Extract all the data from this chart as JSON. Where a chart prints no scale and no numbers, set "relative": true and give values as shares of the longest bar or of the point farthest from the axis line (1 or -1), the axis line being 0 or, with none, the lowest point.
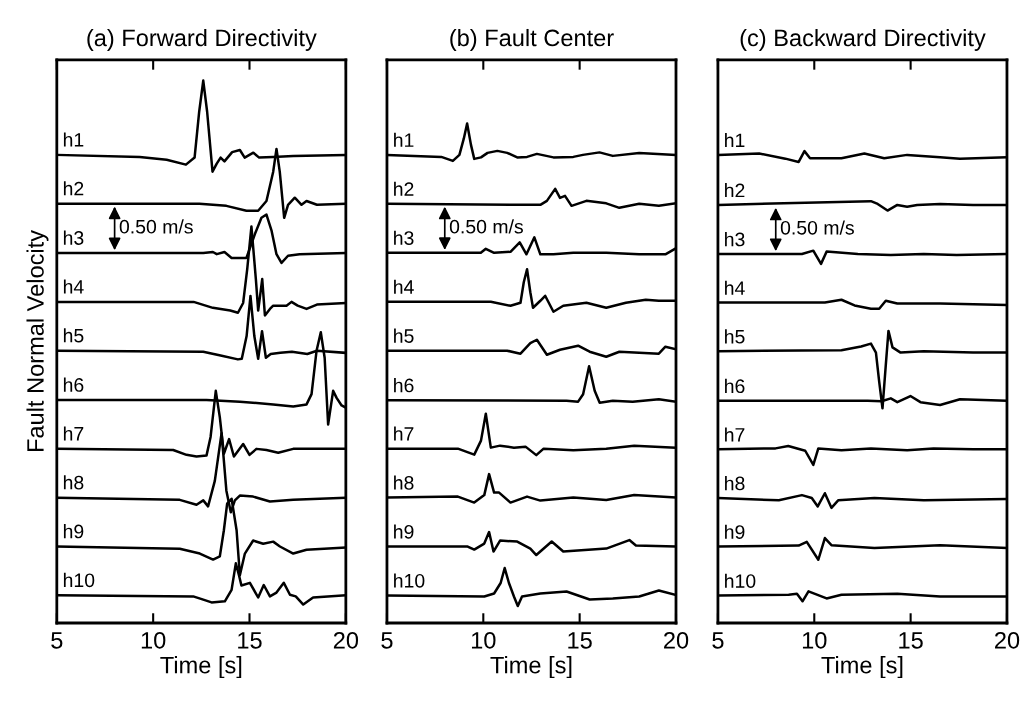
{
  "chart_data": [
    {
      "type": "line",
      "title": "(a) Forward Directivity",
      "xlabel": "Time [s]",
      "ylabel": "Fault Normal Velocity",
      "xlim": [
        5,
        20
      ],
      "xticks": [
        5,
        10,
        15,
        20
      ],
      "relative": true,
      "tick_labels": "x",
      "grid": false,
      "marker": "none",
      "line_style": "solid",
      "annotations": [
        "0.50 m/s"
      ],
      "series": [
        {
          "name": "h1",
          "color": "#000000",
          "x": [
            5,
            9.3,
            10.7,
            11.7,
            12.15,
            12.39,
            12.6,
            12.8,
            13.08,
            13.3,
            13.5,
            13.7,
            14.1,
            14.5,
            14.75,
            15.2,
            15.5,
            16.23,
            17.27,
            20
          ],
          "values": [
            0.863,
            0.859,
            0.854,
            0.845,
            0.858,
            0.943,
            1.0,
            0.943,
            0.832,
            0.847,
            0.858,
            0.851,
            0.868,
            0.872,
            0.858,
            0.867,
            0.858,
            0.859,
            0.861,
            0.863
          ]
        },
        {
          "name": "h2",
          "color": "#000000",
          "x": [
            5,
            12.4,
            13.8,
            14.84,
            15.45,
            15.88,
            16.23,
            16.4,
            16.57,
            16.8,
            17.0,
            17.35,
            17.7,
            17.96,
            18.5,
            20
          ],
          "values": [
            0.773,
            0.773,
            0.769,
            0.76,
            0.76,
            0.778,
            0.832,
            0.874,
            0.832,
            0.747,
            0.771,
            0.784,
            0.771,
            0.778,
            0.771,
            0.773
          ]
        },
        {
          "name": "h3",
          "color": "#000000",
          "x": [
            5,
            12.6,
            13.1,
            13.3,
            13.7,
            14.07,
            14.5,
            14.84,
            15.28,
            15.62,
            15.88,
            16.14,
            16.4,
            16.66,
            17.0,
            17.6,
            20
          ],
          "values": [
            0.682,
            0.682,
            0.684,
            0.68,
            0.684,
            0.673,
            0.673,
            0.673,
            0.717,
            0.747,
            0.753,
            0.724,
            0.68,
            0.664,
            0.677,
            0.68,
            0.682
          ]
        },
        {
          "name": "h4",
          "color": "#000000",
          "x": [
            5,
            12.1,
            13.1,
            14.0,
            14.4,
            14.67,
            14.88,
            15.1,
            15.33,
            15.45,
            15.66,
            15.8,
            16.06,
            16.23,
            16.92,
            17.18,
            17.5,
            17.96,
            18.5,
            20
          ],
          "values": [
            0.592,
            0.592,
            0.581,
            0.576,
            0.572,
            0.59,
            0.652,
            0.731,
            0.634,
            0.576,
            0.634,
            0.567,
            0.579,
            0.585,
            0.585,
            0.592,
            0.585,
            0.579,
            0.587,
            0.59
          ]
        },
        {
          "name": "h5",
          "color": "#000000",
          "x": [
            5,
            12.6,
            13.5,
            14.4,
            14.6,
            14.85,
            15.05,
            15.25,
            15.45,
            15.65,
            15.85,
            16.1,
            16.6,
            17.2,
            18.0,
            18.5,
            20
          ],
          "values": [
            0.502,
            0.5,
            0.493,
            0.486,
            0.487,
            0.529,
            0.603,
            0.529,
            0.487,
            0.538,
            0.489,
            0.496,
            0.498,
            0.5,
            0.496,
            0.502,
            0.498
          ]
        },
        {
          "name": "h6",
          "color": "#000000",
          "x": [
            5,
            12.77,
            14.5,
            16.23,
            17.27,
            17.96,
            18.22,
            18.48,
            18.7,
            18.9,
            19.08,
            19.34,
            19.52,
            19.78,
            20
          ],
          "values": [
            0.411,
            0.411,
            0.408,
            0.403,
            0.399,
            0.403,
            0.422,
            0.502,
            0.536,
            0.489,
            0.366,
            0.428,
            0.415,
            0.401,
            0.397
          ]
        },
        {
          "name": "h7",
          "color": "#000000",
          "x": [
            5,
            11.04,
            11.73,
            12.25,
            12.77,
            12.98,
            13.25,
            13.46,
            13.67,
            13.94,
            14.19,
            14.67,
            15.0,
            15.36,
            15.88,
            16.49,
            17.27,
            20
          ],
          "values": [
            0.321,
            0.319,
            0.31,
            0.307,
            0.309,
            0.343,
            0.428,
            0.379,
            0.312,
            0.339,
            0.307,
            0.33,
            0.31,
            0.321,
            0.319,
            0.314,
            0.321,
            0.321
          ]
        },
        {
          "name": "h8",
          "color": "#000000",
          "x": [
            5,
            11.38,
            12.25,
            12.6,
            12.85,
            13.2,
            13.55,
            13.8,
            14.03,
            14.24,
            14.5,
            15.19,
            16.06,
            17.27,
            20
          ],
          "values": [
            0.231,
            0.227,
            0.218,
            0.226,
            0.215,
            0.262,
            0.35,
            0.244,
            0.204,
            0.226,
            0.235,
            0.233,
            0.224,
            0.227,
            0.231
          ]
        },
        {
          "name": "h9",
          "color": "#000000",
          "x": [
            5,
            11.38,
            12.42,
            13.11,
            13.46,
            13.67,
            13.84,
            14.07,
            14.33,
            14.5,
            14.76,
            15.19,
            15.71,
            16.23,
            16.58,
            17.27,
            17.96,
            20
          ],
          "values": [
            0.141,
            0.137,
            0.128,
            0.117,
            0.123,
            0.171,
            0.22,
            0.229,
            0.171,
            0.088,
            0.128,
            0.152,
            0.146,
            0.15,
            0.141,
            0.128,
            0.135,
            0.139
          ]
        },
        {
          "name": "h10",
          "color": "#000000",
          "x": [
            5,
            12.08,
            12.6,
            13.03,
            13.72,
            14.07,
            14.29,
            14.46,
            14.58,
            15.02,
            15.45,
            15.74,
            16.06,
            16.4,
            16.78,
            17.1,
            17.4,
            17.79,
            18.3,
            20
          ],
          "values": [
            0.051,
            0.049,
            0.043,
            0.038,
            0.04,
            0.061,
            0.11,
            0.087,
            0.069,
            0.074,
            0.047,
            0.07,
            0.049,
            0.056,
            0.074,
            0.052,
            0.049,
            0.034,
            0.047,
            0.051
          ]
        }
      ]
    },
    {
      "type": "line",
      "title": "(b) Fault Center",
      "xlabel": "Time [s]",
      "xlim": [
        5,
        20
      ],
      "xticks": [
        5,
        10,
        15,
        20
      ],
      "relative": true,
      "tick_labels": "x",
      "grid": false,
      "marker": "none",
      "line_style": "solid",
      "annotations": [
        "0.50 m/s"
      ],
      "series": [
        {
          "name": "h1",
          "color": "#000000",
          "x": [
            5,
            7.82,
            8.42,
            8.76,
            8.99,
            9.16,
            9.36,
            9.53,
            9.88,
            10.22,
            10.73,
            11.24,
            11.76,
            12.27,
            12.78,
            13.64,
            14.67,
            15.17,
            16.03,
            16.72,
            18.09,
            20
          ],
          "values": [
            0.937,
            0.933,
            0.925,
            0.937,
            0.97,
            1.0,
            0.957,
            0.929,
            0.932,
            0.941,
            0.945,
            0.941,
            0.932,
            0.933,
            0.939,
            0.932,
            0.933,
            0.937,
            0.942,
            0.935,
            0.941,
            0.937
          ]
        },
        {
          "name": "h2",
          "color": "#000000",
          "x": [
            5,
            12.96,
            13.3,
            13.73,
            13.98,
            14.24,
            14.58,
            15.35,
            16.38,
            17.06,
            18.09,
            19.11,
            20
          ],
          "values": [
            0.839,
            0.837,
            0.845,
            0.869,
            0.851,
            0.855,
            0.835,
            0.845,
            0.84,
            0.831,
            0.839,
            0.835,
            0.84
          ]
        },
        {
          "name": "h3",
          "color": "#000000",
          "x": [
            5,
            9.87,
            10.13,
            10.56,
            11.41,
            11.89,
            12.24,
            12.65,
            12.96,
            13.64,
            14.67,
            16.38,
            18.09,
            19.45,
            20
          ],
          "values": [
            0.741,
            0.741,
            0.749,
            0.741,
            0.743,
            0.762,
            0.738,
            0.772,
            0.738,
            0.738,
            0.741,
            0.741,
            0.738,
            0.738,
            0.75
          ]
        },
        {
          "name": "h4",
          "color": "#000000",
          "x": [
            5,
            10.39,
            11.41,
            11.93,
            12.1,
            12.27,
            12.44,
            12.58,
            12.96,
            13.21,
            13.64,
            14.15,
            15.35,
            16.38,
            17.4,
            18.43,
            19.11,
            20
          ],
          "values": [
            0.643,
            0.643,
            0.635,
            0.641,
            0.682,
            0.708,
            0.662,
            0.631,
            0.645,
            0.655,
            0.623,
            0.635,
            0.641,
            0.631,
            0.641,
            0.647,
            0.645,
            0.645
          ]
        },
        {
          "name": "h5",
          "color": "#000000",
          "x": [
            5,
            11.24,
            11.93,
            12.44,
            12.78,
            13.3,
            13.98,
            14.92,
            15.52,
            16.38,
            17.06,
            18.09,
            19.11,
            19.45,
            20
          ],
          "values": [
            0.545,
            0.545,
            0.539,
            0.56,
            0.567,
            0.537,
            0.547,
            0.555,
            0.543,
            0.533,
            0.543,
            0.541,
            0.539,
            0.553,
            0.548
          ]
        },
        {
          "name": "h6",
          "color": "#000000",
          "x": [
            5,
            14.32,
            14.92,
            15.18,
            15.49,
            15.78,
            16.04,
            16.72,
            17.75,
            19.11,
            20
          ],
          "values": [
            0.446,
            0.445,
            0.443,
            0.458,
            0.514,
            0.465,
            0.441,
            0.445,
            0.443,
            0.448,
            0.443
          ]
        },
        {
          "name": "h7",
          "color": "#000000",
          "x": [
            5,
            8.68,
            9.53,
            9.88,
            10.13,
            10.39,
            10.87,
            11.59,
            12.19,
            12.75,
            13.13,
            14.67,
            16.38,
            17.83,
            20
          ],
          "values": [
            0.349,
            0.349,
            0.337,
            0.365,
            0.419,
            0.351,
            0.355,
            0.351,
            0.353,
            0.336,
            0.349,
            0.346,
            0.349,
            0.355,
            0.351
          ]
        },
        {
          "name": "h8",
          "color": "#000000",
          "x": [
            5,
            8.68,
            9.53,
            10.05,
            10.3,
            10.56,
            10.82,
            11.41,
            12.27,
            12.96,
            14.67,
            16.38,
            17.83,
            20
          ],
          "values": [
            0.251,
            0.253,
            0.241,
            0.256,
            0.298,
            0.261,
            0.261,
            0.241,
            0.253,
            0.245,
            0.251,
            0.246,
            0.256,
            0.251
          ]
        },
        {
          "name": "h9",
          "color": "#000000",
          "x": [
            5,
            9.19,
            9.53,
            10.05,
            10.3,
            10.53,
            10.87,
            11.76,
            12.44,
            12.75,
            13.55,
            14.15,
            16.38,
            17.58,
            17.92,
            20
          ],
          "values": [
            0.153,
            0.153,
            0.147,
            0.159,
            0.182,
            0.143,
            0.165,
            0.163,
            0.149,
            0.136,
            0.163,
            0.143,
            0.149,
            0.166,
            0.155,
            0.153
          ]
        },
        {
          "name": "h10",
          "color": "#000000",
          "x": [
            5,
            10.05,
            10.56,
            10.9,
            11.11,
            11.33,
            11.59,
            11.79,
            12.01,
            12.96,
            14.32,
            15.52,
            16.72,
            18.09,
            19.11,
            20
          ],
          "values": [
            0.055,
            0.053,
            0.059,
            0.08,
            0.11,
            0.08,
            0.053,
            0.034,
            0.053,
            0.059,
            0.063,
            0.047,
            0.049,
            0.053,
            0.065,
            0.056
          ]
        }
      ]
    },
    {
      "type": "line",
      "title": "(c) Backward Directivity",
      "xlabel": "Time [s]",
      "xlim": [
        5,
        20
      ],
      "xticks": [
        5,
        10,
        15,
        20
      ],
      "relative": true,
      "tick_labels": "x",
      "grid": false,
      "marker": "none",
      "line_style": "solid",
      "annotations": [
        "0.50 m/s"
      ],
      "series": [
        {
          "name": "h1",
          "color": "#000000",
          "x": [
            5,
            7.14,
            8.5,
            9.19,
            9.49,
            9.78,
            11.41,
            12.6,
            13.63,
            14.82,
            16.53,
            17.56,
            20
          ],
          "values": [
            0.992,
            0.995,
            0.984,
            0.977,
            1.0,
            0.985,
            0.985,
            0.995,
            0.985,
            0.992,
            0.987,
            0.984,
            0.987
          ]
        },
        {
          "name": "h2",
          "color": "#000000",
          "x": [
            5,
            12.94,
            13.29,
            13.8,
            14.31,
            14.82,
            15.34,
            16.53,
            18.24,
            20
          ],
          "values": [
            0.886,
            0.894,
            0.888,
            0.874,
            0.886,
            0.882,
            0.886,
            0.888,
            0.886,
            0.886
          ]
        },
        {
          "name": "h3",
          "color": "#000000",
          "x": [
            5,
            9.36,
            9.95,
            10.35,
            10.64,
            12.26,
            13.97,
            15.68,
            17.39,
            20
          ],
          "values": [
            0.782,
            0.782,
            0.789,
            0.761,
            0.787,
            0.782,
            0.78,
            0.782,
            0.78,
            0.782
          ]
        },
        {
          "name": "h4",
          "color": "#000000",
          "x": [
            5,
            10.55,
            11.41,
            12.09,
            12.94,
            13.37,
            13.71,
            14.31,
            16.53,
            20
          ],
          "values": [
            0.679,
            0.679,
            0.685,
            0.673,
            0.666,
            0.666,
            0.683,
            0.677,
            0.677,
            0.674
          ]
        },
        {
          "name": "h5",
          "color": "#000000",
          "x": [
            5,
            11.41,
            12.43,
            12.94,
            13.2,
            13.37,
            13.54,
            13.71,
            13.85,
            14.06,
            14.48,
            15.68,
            18.24,
            20
          ],
          "values": [
            0.576,
            0.578,
            0.586,
            0.592,
            0.573,
            0.511,
            0.455,
            0.546,
            0.619,
            0.584,
            0.573,
            0.576,
            0.573,
            0.573
          ]
        },
        {
          "name": "h6",
          "color": "#000000",
          "x": [
            5,
            12.77,
            13.49,
            13.97,
            14.31,
            14.99,
            15.51,
            16.53,
            17.56,
            20
          ],
          "values": [
            0.471,
            0.471,
            0.47,
            0.476,
            0.468,
            0.481,
            0.468,
            0.462,
            0.474,
            0.471
          ]
        },
        {
          "name": "h7",
          "color": "#000000",
          "x": [
            5,
            7.99,
            8.65,
            9.53,
            9.95,
            10.21,
            11.41,
            12.94,
            14.82,
            16.19,
            18.24,
            20
          ],
          "values": [
            0.368,
            0.37,
            0.375,
            0.365,
            0.335,
            0.37,
            0.366,
            0.37,
            0.366,
            0.37,
            0.368,
            0.368
          ]
        },
        {
          "name": "h8",
          "color": "#000000",
          "x": [
            5,
            8.16,
            9.36,
            9.87,
            10.18,
            10.55,
            10.89,
            11.24,
            13.12,
            15.68,
            20
          ],
          "values": [
            0.265,
            0.26,
            0.271,
            0.265,
            0.247,
            0.275,
            0.244,
            0.26,
            0.265,
            0.26,
            0.263
          ]
        },
        {
          "name": "h9",
          "color": "#000000",
          "x": [
            5,
            9.19,
            9.61,
            10.21,
            10.55,
            10.89,
            13.12,
            16.53,
            20
          ],
          "values": [
            0.162,
            0.164,
            0.172,
            0.134,
            0.18,
            0.165,
            0.159,
            0.165,
            0.159
          ]
        },
        {
          "name": "h10",
          "color": "#000000",
          "x": [
            5,
            8.67,
            9.1,
            9.39,
            9.7,
            10.64,
            11.41,
            14.31,
            16.53,
            20
          ],
          "values": [
            0.058,
            0.06,
            0.062,
            0.046,
            0.067,
            0.052,
            0.06,
            0.062,
            0.056,
            0.056
          ]
        }
      ]
    }
  ]
}
